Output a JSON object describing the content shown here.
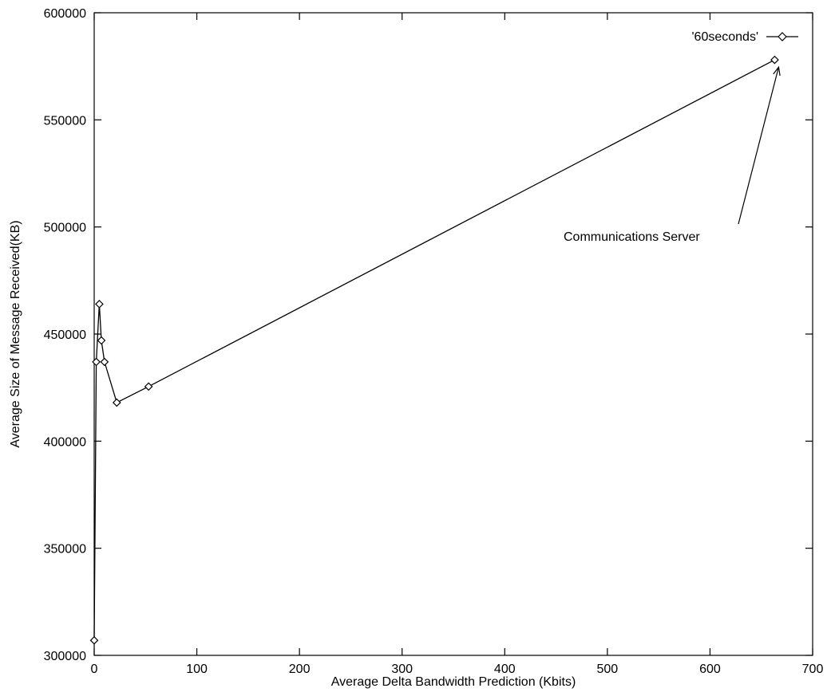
{
  "chart_data": {
    "type": "line",
    "title": "",
    "xlabel": "Average Delta Bandwidth Prediction (Kbits)",
    "ylabel": "Average Size of Message Received(KB)",
    "xlim": [
      0,
      700
    ],
    "ylim": [
      300000,
      600000
    ],
    "xticks": [
      0,
      100,
      200,
      300,
      400,
      500,
      600,
      700
    ],
    "yticks": [
      300000,
      350000,
      400000,
      450000,
      500000,
      550000,
      600000
    ],
    "grid": false,
    "legend_position": "top-right",
    "marker": "diamond",
    "series": [
      {
        "name": "'60seconds'",
        "x": [
          0,
          2,
          5,
          7,
          10,
          22,
          53,
          663
        ],
        "y": [
          307000,
          437000,
          464000,
          447000,
          437000,
          418000,
          425500,
          578000
        ]
      }
    ],
    "annotations": [
      {
        "text": "Communications Server",
        "x": 663,
        "y": 578000
      }
    ]
  },
  "colors": {
    "line": "#000000",
    "background": "#ffffff"
  }
}
